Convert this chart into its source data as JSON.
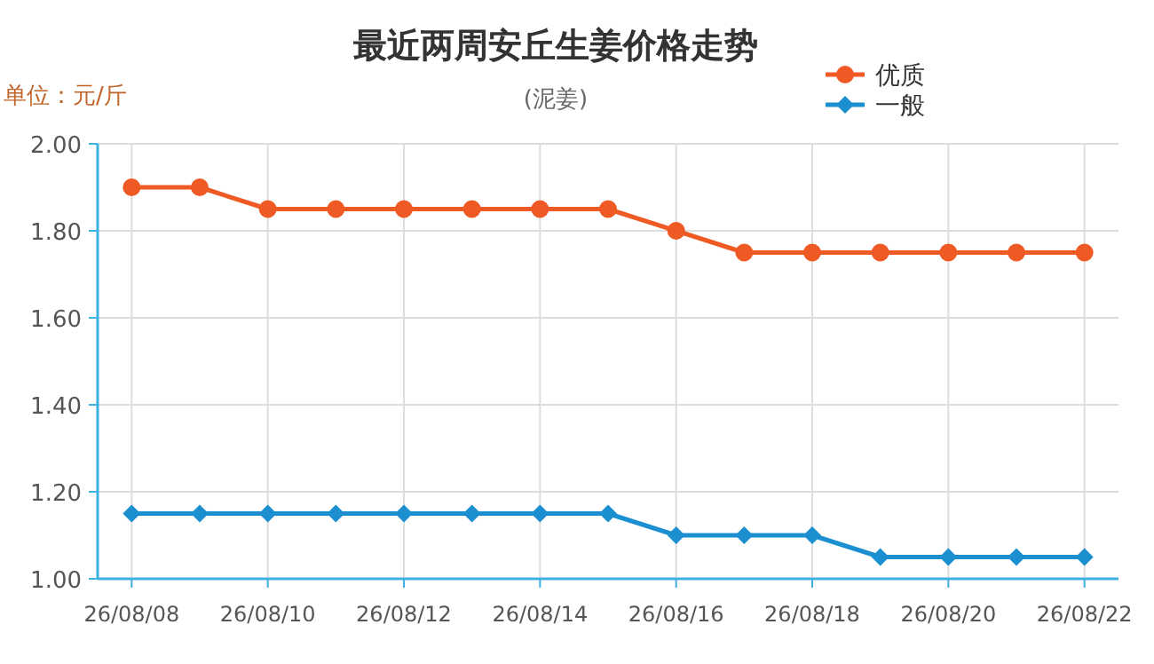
{
  "chart_data": {
    "type": "line",
    "title": "最近两周安丘生姜价格走势",
    "subtitle": "(泥姜)",
    "annotations": [
      "单位：元/斤"
    ],
    "categories": [
      "26/08/08",
      null,
      "26/08/10",
      null,
      "26/08/12",
      null,
      "26/08/14",
      null,
      "26/08/16",
      null,
      "26/08/18",
      null,
      "26/08/20",
      null,
      "26/08/22"
    ],
    "series": [
      {
        "name": "优质",
        "color": "#ef5a24",
        "marker": "circle",
        "values": [
          1.9,
          1.9,
          1.85,
          1.85,
          1.85,
          1.85,
          1.85,
          1.85,
          1.8,
          1.75,
          1.75,
          1.75,
          1.75,
          1.75,
          1.75
        ]
      },
      {
        "name": "一般",
        "color": "#1b8fd0",
        "marker": "diamond",
        "values": [
          1.15,
          1.15,
          1.15,
          1.15,
          1.15,
          1.15,
          1.15,
          1.15,
          1.1,
          1.1,
          1.1,
          1.05,
          1.05,
          1.05,
          1.05
        ]
      }
    ],
    "ylim": [
      1.0,
      2.0
    ],
    "yticks": [
      {
        "value": 1.0,
        "label": "1.00"
      },
      {
        "value": 1.2,
        "label": "1.20"
      },
      {
        "value": 1.4,
        "label": "1.40"
      },
      {
        "value": 1.6,
        "label": "1.60"
      },
      {
        "value": 1.8,
        "label": "1.80"
      },
      {
        "value": 2.0,
        "label": "2.00"
      }
    ],
    "grid": true,
    "legend": "top right",
    "line_style": "solid"
  }
}
